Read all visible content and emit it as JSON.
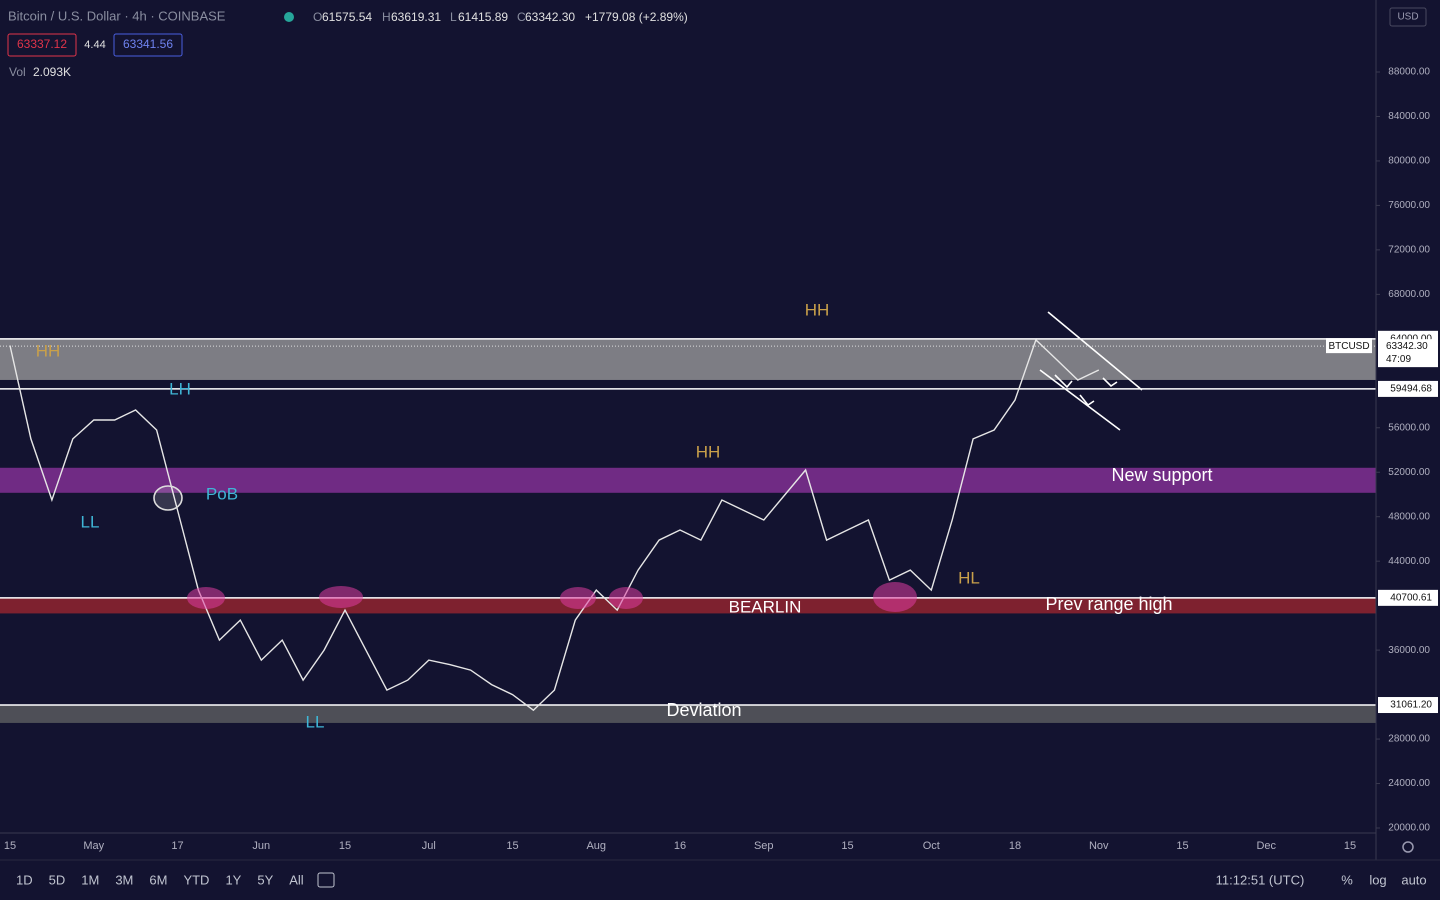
{
  "header": {
    "symbol": "Bitcoin / U.S. Dollar · 4h · COINBASE",
    "open_key": "O",
    "open": "61575.54",
    "high_key": "H",
    "high": "63619.31",
    "low_key": "L",
    "low": "61415.89",
    "close_key": "C",
    "close": "63342.30",
    "change": "+1779.08 (+2.89%)",
    "bid": "63337.12",
    "spread": "4.44",
    "ask": "63341.56",
    "vol_key": "Vol",
    "vol": "2.093K",
    "currency": "USD"
  },
  "toolbar": {
    "ranges": [
      "1D",
      "5D",
      "1M",
      "3M",
      "6M",
      "YTD",
      "1Y",
      "5Y",
      "All"
    ],
    "time": "11:12:51 (UTC)",
    "percent": "%",
    "log": "log",
    "auto": "auto"
  },
  "chart_data": {
    "type": "line",
    "color": "#e6e6e6",
    "categories": [
      "15",
      null,
      null,
      null,
      "May",
      null,
      null,
      null,
      "17",
      null,
      null,
      null,
      "Jun",
      null,
      null,
      null,
      "15",
      null,
      null,
      null,
      "Jul",
      null,
      null,
      null,
      "15",
      null,
      null,
      null,
      "Aug",
      null,
      null,
      null,
      "16",
      null,
      null,
      null,
      "Sep",
      null,
      null,
      null,
      "15",
      null,
      null,
      null,
      "Oct",
      null,
      null,
      null,
      "18",
      null,
      null,
      null,
      "Nov",
      null,
      null,
      null,
      "15",
      null,
      null,
      null,
      "Dec",
      null,
      null,
      null,
      "15"
    ],
    "values": [
      63400,
      55000,
      49500,
      55000,
      56700,
      56700,
      57600,
      55800,
      48600,
      41400,
      36900,
      38700,
      35100,
      36900,
      33300,
      36000,
      39600,
      36000,
      32400,
      33300,
      35100,
      34700,
      34200,
      32900,
      32000,
      30600,
      32400,
      38700,
      41400,
      39600,
      43200,
      45900,
      46800,
      45900,
      49500,
      48600,
      47700,
      49950,
      52200,
      45900,
      46800,
      47700,
      42300,
      43200,
      41400,
      47700,
      55000,
      55800,
      58500,
      63900,
      62100,
      60300,
      61200,
      null,
      null,
      null,
      null,
      null,
      null,
      null,
      null,
      null,
      null,
      null,
      null
    ],
    "ylim": [
      19550,
      94476
    ],
    "yticks": [
      {
        "value": 20000,
        "label": "20000.00"
      },
      {
        "value": 24000,
        "label": "24000.00"
      },
      {
        "value": 28000,
        "label": "28000.00"
      },
      {
        "value": 36000,
        "label": "36000.00"
      },
      {
        "value": 44000,
        "label": "44000.00"
      },
      {
        "value": 48000,
        "label": "48000.00"
      },
      {
        "value": 52000,
        "label": "52000.00"
      },
      {
        "value": 56000,
        "label": "56000.00"
      },
      {
        "value": 68000,
        "label": "68000.00"
      },
      {
        "value": 72000,
        "label": "72000.00"
      },
      {
        "value": 76000,
        "label": "76000.00"
      },
      {
        "value": 80000,
        "label": "80000.00"
      },
      {
        "value": 84000,
        "label": "84000.00"
      },
      {
        "value": 88000,
        "label": "88000.00"
      }
    ],
    "zones": [
      {
        "from": 60300,
        "to": 64000,
        "color": "#8a8a8e"
      },
      {
        "from": 50150,
        "to": 52400,
        "color": "#7b2f8e"
      },
      {
        "from": 39300,
        "to": 40700,
        "color": "#8b2330"
      },
      {
        "from": 29450,
        "to": 31061,
        "color": "#55565c"
      }
    ],
    "levels": [
      {
        "value": 64000,
        "label": "64000.00"
      },
      {
        "value": 59494.68,
        "label": "59494.68"
      },
      {
        "value": 40700.61,
        "label": "40700.61"
      },
      {
        "value": 31061.2,
        "label": "31061.20"
      }
    ],
    "last_price": {
      "value": 63342.3,
      "label": "63342.30"
    },
    "last_symbol": "BTCUSD",
    "countdown": "47:09",
    "annotations": [
      {
        "text": "HH",
        "color": "#c9a04a"
      },
      {
        "text": "LH",
        "color": "#3fb6d6"
      },
      {
        "text": "LL",
        "color": "#3fb6d6"
      },
      {
        "text": "PoB",
        "color": "#3fb6d6"
      },
      {
        "text": "LL",
        "color": "#3fb6d6"
      },
      {
        "text": "HH",
        "color": "#c9a04a"
      },
      {
        "text": "HH",
        "color": "#c9a04a"
      },
      {
        "text": "HL",
        "color": "#c9a04a"
      },
      {
        "text": "BEARLIN",
        "color": "#ffffff"
      },
      {
        "text": "Prev range high",
        "color": "#ffffff"
      },
      {
        "text": "New support",
        "color": "#ffffff"
      },
      {
        "text": "Deviation",
        "color": "#ffffff"
      }
    ]
  }
}
